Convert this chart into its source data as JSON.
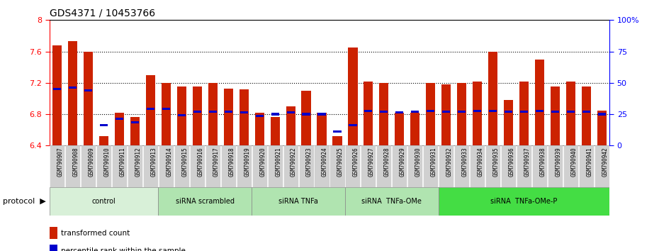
{
  "title": "GDS4371 / 10453766",
  "samples": [
    "GSM790907",
    "GSM790908",
    "GSM790909",
    "GSM790910",
    "GSM790911",
    "GSM790912",
    "GSM790913",
    "GSM790914",
    "GSM790915",
    "GSM790916",
    "GSM790917",
    "GSM790918",
    "GSM790919",
    "GSM790920",
    "GSM790921",
    "GSM790922",
    "GSM790923",
    "GSM790924",
    "GSM790925",
    "GSM790926",
    "GSM790927",
    "GSM790928",
    "GSM790929",
    "GSM790930",
    "GSM790931",
    "GSM790932",
    "GSM790933",
    "GSM790934",
    "GSM790935",
    "GSM790936",
    "GSM790937",
    "GSM790938",
    "GSM790939",
    "GSM790940",
    "GSM790941",
    "GSM790942"
  ],
  "red_values": [
    7.68,
    7.73,
    7.6,
    6.52,
    6.82,
    6.76,
    7.3,
    7.2,
    7.15,
    7.15,
    7.2,
    7.13,
    7.12,
    6.82,
    6.76,
    6.9,
    7.1,
    6.82,
    6.52,
    7.65,
    7.22,
    7.2,
    6.82,
    6.82,
    7.2,
    7.18,
    7.2,
    7.22,
    7.6,
    6.98,
    7.22,
    7.5,
    7.15,
    7.22,
    7.15,
    6.85
  ],
  "blue_values": [
    7.12,
    7.14,
    7.1,
    6.66,
    6.74,
    6.7,
    6.87,
    6.87,
    6.79,
    6.83,
    6.83,
    6.83,
    6.82,
    6.78,
    6.8,
    6.82,
    6.8,
    6.8,
    6.58,
    6.66,
    6.84,
    6.83,
    6.82,
    6.83,
    6.84,
    6.83,
    6.83,
    6.84,
    6.84,
    6.83,
    6.83,
    6.84,
    6.83,
    6.83,
    6.83,
    6.8
  ],
  "ylim_left": [
    6.4,
    8.0
  ],
  "yticks_left": [
    6.4,
    6.8,
    7.2,
    7.6,
    8.0
  ],
  "ytick_labels_left": [
    "6.4",
    "6.8",
    "7.2",
    "7.6",
    "8"
  ],
  "ylim_right": [
    0,
    100
  ],
  "yticks_right": [
    0,
    25,
    50,
    75,
    100
  ],
  "ytick_labels_right": [
    "0",
    "25",
    "50",
    "75",
    "100%"
  ],
  "group_defs": [
    {
      "label": "control",
      "start": 0,
      "end": 7,
      "color": "#d6f0d6"
    },
    {
      "label": "siRNA scrambled",
      "start": 7,
      "end": 13,
      "color": "#b8e8b8"
    },
    {
      "label": "siRNA TNFa",
      "start": 13,
      "end": 19,
      "color": "#b8e8b8"
    },
    {
      "label": "siRNA  TNFa-OMe",
      "start": 19,
      "end": 25,
      "color": "#b8e8b8"
    },
    {
      "label": "siRNA  TNFa-OMe-P",
      "start": 25,
      "end": 36,
      "color": "#66dd66"
    }
  ],
  "bar_color": "#cc2200",
  "blue_color": "#0000cc",
  "bar_width": 0.6,
  "title_fontsize": 10
}
